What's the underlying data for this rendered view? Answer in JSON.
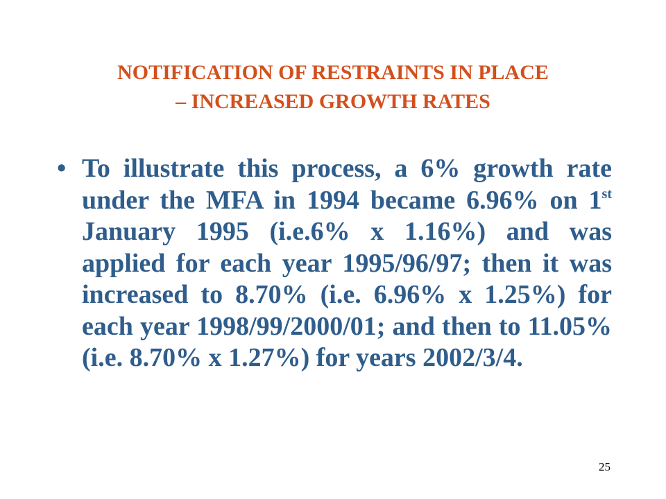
{
  "slide": {
    "title_line1": "NOTIFICATION OF RESTRAINTS IN PLACE",
    "title_line2": "– INCREASED GROWTH RATES",
    "bullet_glyph": "•",
    "bullet": {
      "part1": "To illustrate this process, a 6% growth rate under the MFA in 1994 became 6.96% on 1",
      "sup": "st",
      "part2": " January 1995 (i.e.6% x 1.16%) and was applied for each year 1995/96/97; then it was increased to 8.70% (i.e. 6.96% x 1.25%) for each year 1998/99/2000/01; and then to 11.05% (i.e. 8.70% x 1.27%) for years 2002/3/4."
    },
    "page_number": "25"
  },
  "colors": {
    "title": "#d2501e",
    "body_text": "#2f5d8c",
    "background": "#ffffff"
  }
}
